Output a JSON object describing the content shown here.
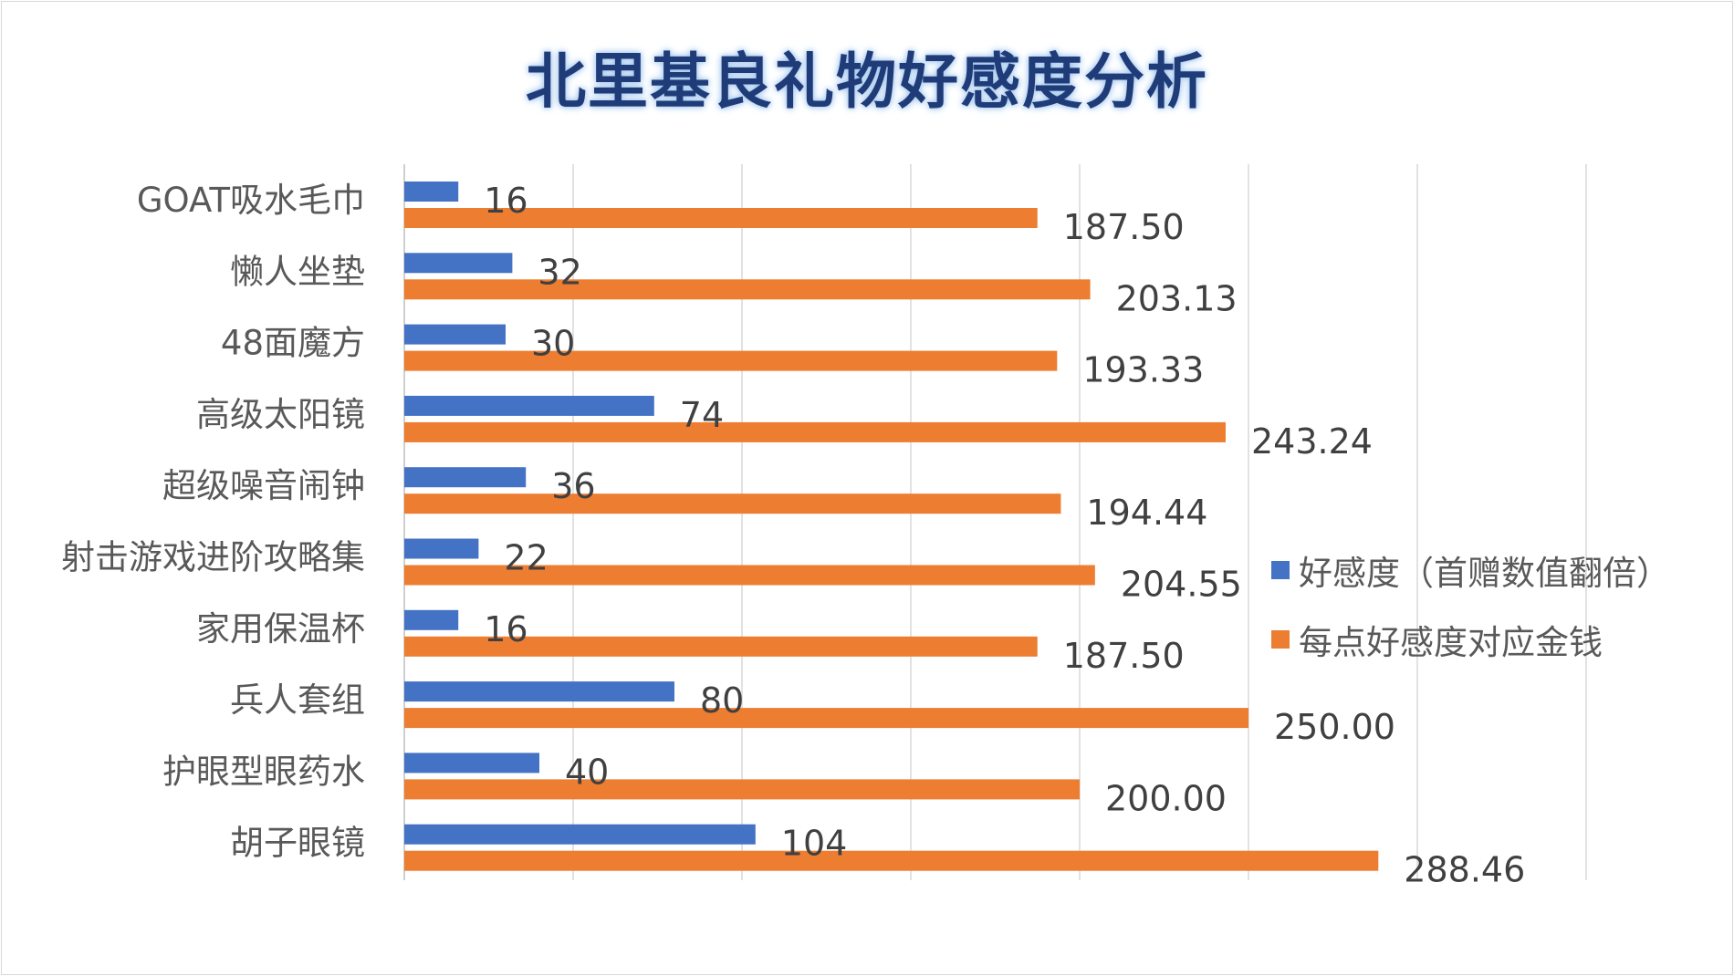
{
  "chart_data": {
    "type": "bar",
    "orientation": "horizontal",
    "title": "北里基良礼物好感度分析",
    "categories": [
      "GOAT吸水毛巾",
      "懒人坐垫",
      "48面魔方",
      "高级太阳镜",
      "超级噪音闹钟",
      "射击游戏进阶攻略集",
      "家用保温杯",
      "兵人套组",
      "护眼型眼药水",
      "胡子眼镜"
    ],
    "series": [
      {
        "name": "好感度（首赠数值翻倍）",
        "color": "#4472c4",
        "values": [
          16,
          32,
          30,
          74,
          36,
          22,
          16,
          80,
          40,
          104
        ],
        "labels": [
          "16",
          "32",
          "30",
          "74",
          "36",
          "22",
          "16",
          "80",
          "40",
          "104"
        ]
      },
      {
        "name": "每点好感度对应金钱",
        "color": "#ed7d31",
        "values": [
          187.5,
          203.13,
          193.33,
          243.24,
          194.44,
          204.55,
          187.5,
          250.0,
          200.0,
          288.46
        ],
        "labels": [
          "187.50",
          "203.13",
          "193.33",
          "243.24",
          "194.44",
          "204.55",
          "187.50",
          "250.00",
          "200.00",
          "288.46"
        ]
      }
    ],
    "xlim": [
      0,
      350
    ],
    "grid": true,
    "legend_position": "right"
  }
}
